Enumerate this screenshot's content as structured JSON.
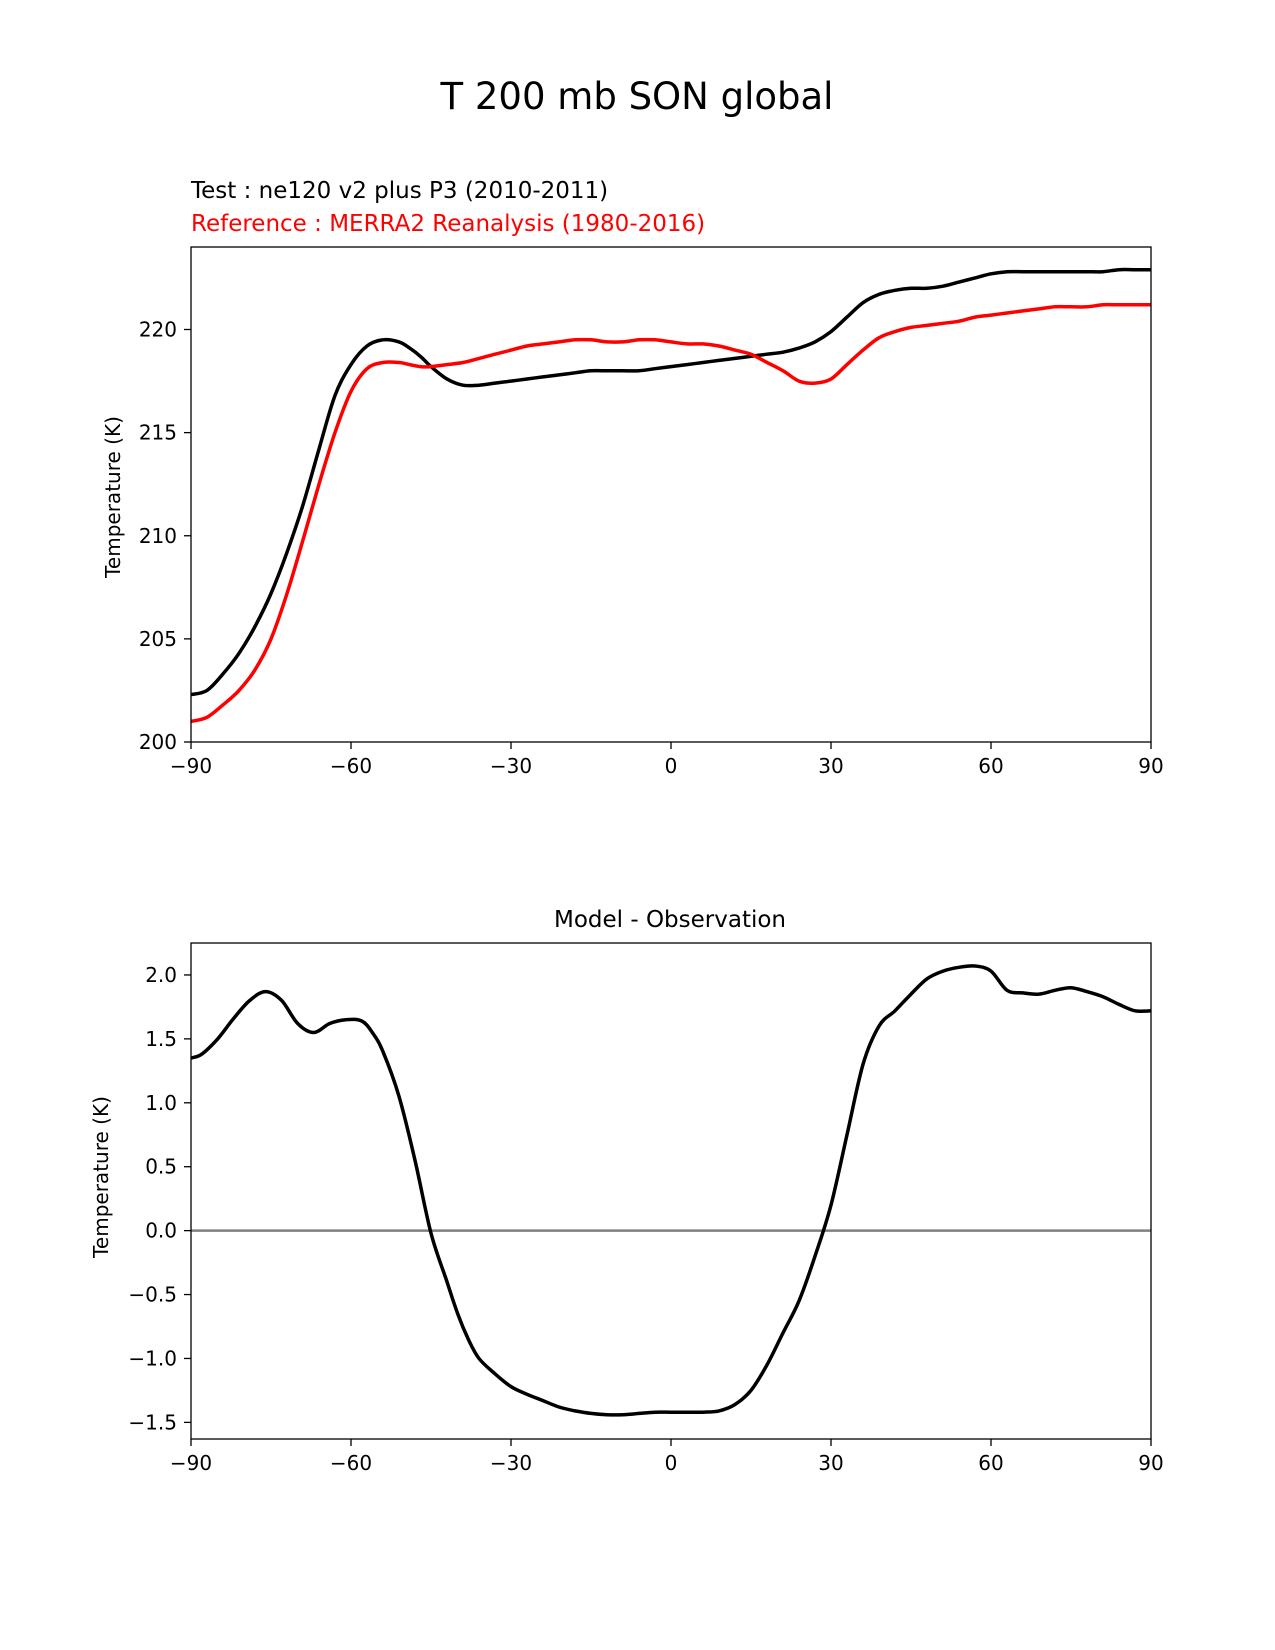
{
  "figure": {
    "title": "T 200 mb SON global"
  },
  "colors": {
    "test": "#000000",
    "reference": "#ff0000",
    "diff": "#000000",
    "zero_line": "#808080",
    "axes": "#000000",
    "background": "#ffffff"
  },
  "chart_data": [
    {
      "type": "line",
      "test_label": "Test : ne120 v2 plus P3 (2010-2011)",
      "reference_label": "Reference : MERRA2 Reanalysis (1980-2016)",
      "xlabel": "",
      "ylabel": "Temperature (K)",
      "xlim": [
        -90,
        90
      ],
      "ylim": [
        200,
        224
      ],
      "xticks": [
        -90,
        -60,
        -30,
        0,
        30,
        60,
        90
      ],
      "xtick_labels": [
        "−90",
        "−60",
        "−30",
        "0",
        "30",
        "60",
        "90"
      ],
      "yticks": [
        200,
        205,
        210,
        215,
        220
      ],
      "ytick_labels": [
        "200",
        "205",
        "210",
        "215",
        "220"
      ],
      "series": [
        {
          "name": "Test",
          "color": "#000000",
          "x": [
            -90,
            -87,
            -84,
            -81,
            -78,
            -75,
            -72,
            -69,
            -66,
            -63,
            -60,
            -57,
            -54,
            -51,
            -49,
            -47,
            -45,
            -42,
            -39,
            -36,
            -33,
            -30,
            -27,
            -24,
            -21,
            -18,
            -15,
            -12,
            -9,
            -6,
            -3,
            0,
            3,
            6,
            9,
            12,
            15,
            18,
            21,
            24,
            27,
            30,
            33,
            36,
            39,
            42,
            45,
            48,
            51,
            54,
            57,
            60,
            63,
            66,
            69,
            72,
            75,
            78,
            81,
            84,
            87,
            90
          ],
          "values": [
            202.3,
            202.5,
            203.3,
            204.3,
            205.6,
            207.2,
            209.2,
            211.5,
            214.2,
            216.8,
            218.3,
            219.2,
            219.5,
            219.4,
            219.1,
            218.7,
            218.2,
            217.6,
            217.3,
            217.3,
            217.4,
            217.5,
            217.6,
            217.7,
            217.8,
            217.9,
            218.0,
            218.0,
            218.0,
            218.0,
            218.1,
            218.2,
            218.3,
            218.4,
            218.5,
            218.6,
            218.7,
            218.8,
            218.9,
            219.1,
            219.4,
            219.9,
            220.6,
            221.3,
            221.7,
            221.9,
            222.0,
            222.0,
            222.1,
            222.3,
            222.5,
            222.7,
            222.8,
            222.8,
            222.8,
            222.8,
            222.8,
            222.8,
            222.8,
            222.9,
            222.9,
            222.9
          ]
        },
        {
          "name": "Reference",
          "color": "#ff0000",
          "x": [
            -90,
            -87,
            -84,
            -81,
            -78,
            -75,
            -72,
            -69,
            -66,
            -63,
            -60,
            -57,
            -54,
            -51,
            -49,
            -47,
            -45,
            -42,
            -39,
            -36,
            -33,
            -30,
            -27,
            -24,
            -21,
            -18,
            -15,
            -12,
            -9,
            -6,
            -3,
            0,
            3,
            6,
            9,
            12,
            15,
            18,
            21,
            24,
            27,
            30,
            33,
            36,
            39,
            42,
            45,
            48,
            51,
            54,
            57,
            60,
            63,
            66,
            69,
            72,
            75,
            78,
            81,
            84,
            87,
            90
          ],
          "values": [
            201.0,
            201.2,
            201.8,
            202.5,
            203.5,
            205.0,
            207.2,
            209.8,
            212.5,
            215.0,
            217.0,
            218.1,
            218.4,
            218.4,
            218.3,
            218.2,
            218.2,
            218.3,
            218.4,
            218.6,
            218.8,
            219.0,
            219.2,
            219.3,
            219.4,
            219.5,
            219.5,
            219.4,
            219.4,
            219.5,
            219.5,
            219.4,
            219.3,
            219.3,
            219.2,
            219.0,
            218.8,
            218.4,
            218.0,
            217.5,
            217.4,
            217.6,
            218.3,
            219.0,
            219.6,
            219.9,
            220.1,
            220.2,
            220.3,
            220.4,
            220.6,
            220.7,
            220.8,
            220.9,
            221.0,
            221.1,
            221.1,
            221.1,
            221.2,
            221.2,
            221.2,
            221.2
          ]
        }
      ]
    },
    {
      "type": "line",
      "title": "Model - Observation",
      "xlabel": "",
      "ylabel": "Temperature (K)",
      "xlim": [
        -90,
        90
      ],
      "ylim": [
        -1.63,
        2.25
      ],
      "xticks": [
        -90,
        -60,
        -30,
        0,
        30,
        60,
        90
      ],
      "xtick_labels": [
        "−90",
        "−60",
        "−30",
        "0",
        "30",
        "60",
        "90"
      ],
      "yticks": [
        -1.5,
        -1.0,
        -0.5,
        0.0,
        0.5,
        1.0,
        1.5,
        2.0
      ],
      "ytick_labels": [
        "−1.5",
        "−1.0",
        "−0.5",
        "0.0",
        "0.5",
        "1.0",
        "1.5",
        "2.0"
      ],
      "zero_line": 0,
      "series": [
        {
          "name": "Model - Observation",
          "color": "#000000",
          "x": [
            -90,
            -88,
            -85,
            -82,
            -79,
            -76,
            -73,
            -70,
            -67,
            -64,
            -61,
            -58,
            -56,
            -54,
            -51,
            -48,
            -45,
            -42,
            -40,
            -38,
            -36,
            -33,
            -30,
            -27,
            -24,
            -21,
            -18,
            -15,
            -12,
            -9,
            -6,
            -3,
            0,
            3,
            6,
            9,
            12,
            15,
            18,
            21,
            24,
            27,
            30,
            33,
            36,
            39,
            42,
            45,
            48,
            51,
            54,
            57,
            60,
            63,
            66,
            69,
            72,
            75,
            78,
            81,
            84,
            87,
            90
          ],
          "values": [
            1.35,
            1.38,
            1.5,
            1.66,
            1.8,
            1.87,
            1.8,
            1.62,
            1.55,
            1.62,
            1.65,
            1.64,
            1.55,
            1.4,
            1.05,
            0.55,
            -0.02,
            -0.4,
            -0.65,
            -0.85,
            -1.0,
            -1.12,
            -1.22,
            -1.28,
            -1.33,
            -1.38,
            -1.41,
            -1.43,
            -1.44,
            -1.44,
            -1.43,
            -1.42,
            -1.42,
            -1.42,
            -1.42,
            -1.41,
            -1.36,
            -1.25,
            -1.05,
            -0.8,
            -0.55,
            -0.2,
            0.2,
            0.75,
            1.3,
            1.6,
            1.72,
            1.85,
            1.97,
            2.03,
            2.06,
            2.07,
            2.03,
            1.88,
            1.86,
            1.85,
            1.88,
            1.9,
            1.87,
            1.83,
            1.77,
            1.72,
            1.72
          ]
        }
      ]
    }
  ]
}
